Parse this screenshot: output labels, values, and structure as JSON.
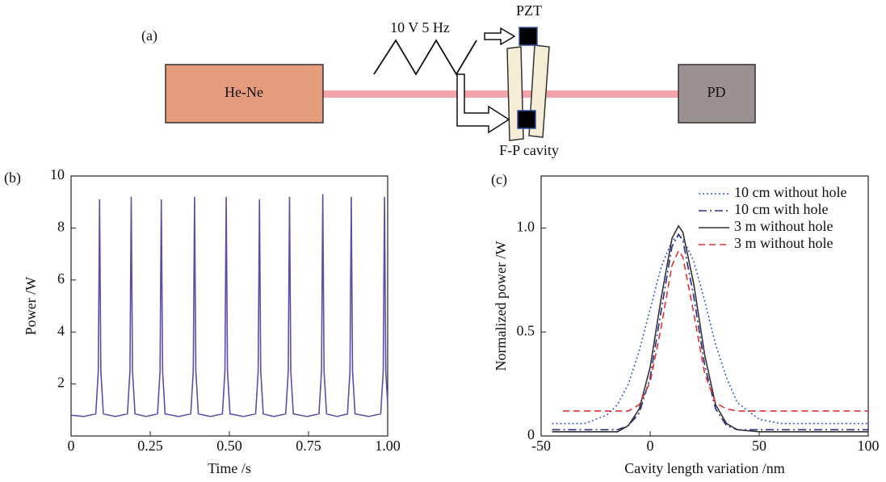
{
  "panel_labels": [
    "(a)",
    "(b)",
    "(c)"
  ],
  "diagram": {
    "source": "He-Ne",
    "detector": "PD",
    "actuator": "PZT",
    "cavity": "F-P cavity",
    "drive": "10 V  5 Hz"
  },
  "chart_data": [
    {
      "type": "line",
      "x_label": "Time /s",
      "y_label": "Power /W",
      "color": "#5a4fa8",
      "x": [
        0,
        0.04,
        0.078,
        0.086,
        0.09,
        0.094,
        0.102,
        0.14,
        0.178,
        0.186,
        0.19,
        0.194,
        0.202,
        0.237,
        0.273,
        0.281,
        0.285,
        0.289,
        0.297,
        0.34,
        0.378,
        0.386,
        0.39,
        0.394,
        0.402,
        0.44,
        0.478,
        0.486,
        0.49,
        0.494,
        0.502,
        0.545,
        0.583,
        0.591,
        0.595,
        0.599,
        0.607,
        0.64,
        0.678,
        0.686,
        0.69,
        0.694,
        0.702,
        0.745,
        0.783,
        0.791,
        0.795,
        0.799,
        0.807,
        0.84,
        0.873,
        0.881,
        0.885,
        0.889,
        0.897,
        0.94,
        0.978,
        0.986,
        0.99,
        0.994,
        1
      ],
      "values": [
        0.8,
        0.75,
        0.85,
        2.5,
        9.1,
        2.5,
        0.85,
        0.75,
        0.85,
        2.5,
        9.2,
        2.5,
        0.85,
        0.75,
        0.85,
        2.5,
        9.1,
        2.5,
        0.85,
        0.75,
        0.85,
        2.5,
        9.2,
        2.5,
        0.85,
        0.75,
        0.85,
        2.5,
        9.2,
        2.5,
        0.85,
        0.75,
        0.85,
        2.5,
        9.1,
        2.5,
        0.85,
        0.75,
        0.85,
        2.5,
        9.2,
        2.5,
        0.85,
        0.75,
        0.85,
        2.5,
        9.3,
        2.5,
        0.85,
        0.75,
        0.85,
        2.5,
        9.2,
        2.5,
        0.85,
        0.75,
        0.85,
        2.5,
        9.2,
        2.5,
        1.2
      ],
      "xlim": [
        0,
        1
      ],
      "xticks": [
        0,
        0.25,
        {
          "value": 0.5,
          "label": "0.50"
        },
        0.75,
        {
          "value": 1,
          "label": "1.00"
        }
      ],
      "ylim": [
        0,
        10
      ],
      "yticks": [
        2,
        4,
        6,
        8,
        10
      ]
    },
    {
      "type": "line",
      "x_label": "Cavity length variation /nm",
      "y_label": "Normalized power /W",
      "legend": "upper right",
      "x": [
        -45,
        -40,
        -30,
        -20,
        -15,
        -10,
        -5,
        0,
        5,
        10,
        13,
        15,
        20,
        25,
        30,
        35,
        40,
        50,
        60,
        70,
        80,
        90,
        100
      ],
      "series": [
        {
          "name": "10 cm without hole",
          "color": "#3060c8",
          "linestyle": "dotted",
          "values": [
            0.06,
            0.06,
            0.06,
            0.1,
            0.15,
            0.25,
            0.41,
            0.61,
            0.81,
            0.94,
            0.96,
            0.95,
            0.84,
            0.65,
            0.44,
            0.28,
            0.16,
            0.08,
            0.06,
            0.06,
            0.06,
            0.06,
            0.06
          ]
        },
        {
          "name": "10 cm with hole",
          "color": "#2a2a8a",
          "linestyle": "dashdot",
          "values": [
            0.03,
            0.03,
            0.03,
            0.03,
            0.03,
            0.05,
            0.11,
            0.28,
            0.6,
            0.91,
            0.97,
            0.94,
            0.67,
            0.34,
            0.13,
            0.05,
            0.03,
            0.03,
            0.03,
            0.03,
            0.03,
            0.03,
            0.03
          ]
        },
        {
          "name": "3 m without hole",
          "color": "#333333",
          "linestyle": "solid",
          "values": [
            0.02,
            0.02,
            0.02,
            0.02,
            0.02,
            0.05,
            0.13,
            0.33,
            0.66,
            0.95,
            1.01,
            0.98,
            0.73,
            0.39,
            0.15,
            0.06,
            0.03,
            0.02,
            0.02,
            0.02,
            0.02,
            0.02,
            0.02
          ]
        },
        {
          "name": "3 m without hole",
          "color": "#e03030",
          "linestyle": "dashed",
          "values": [
            null,
            0.12,
            0.12,
            0.12,
            0.12,
            0.12,
            0.15,
            0.26,
            0.52,
            0.82,
            0.89,
            0.86,
            0.59,
            0.3,
            0.16,
            0.13,
            0.12,
            0.12,
            0.12,
            0.12,
            0.12,
            0.12,
            0.12
          ]
        }
      ],
      "xlim": [
        -50,
        100
      ],
      "xticks": [
        -50,
        0,
        50,
        100
      ],
      "ylim": [
        0,
        1.25
      ],
      "yticks": [
        0,
        0.5,
        {
          "value": 1,
          "label": "1.0"
        }
      ]
    }
  ]
}
